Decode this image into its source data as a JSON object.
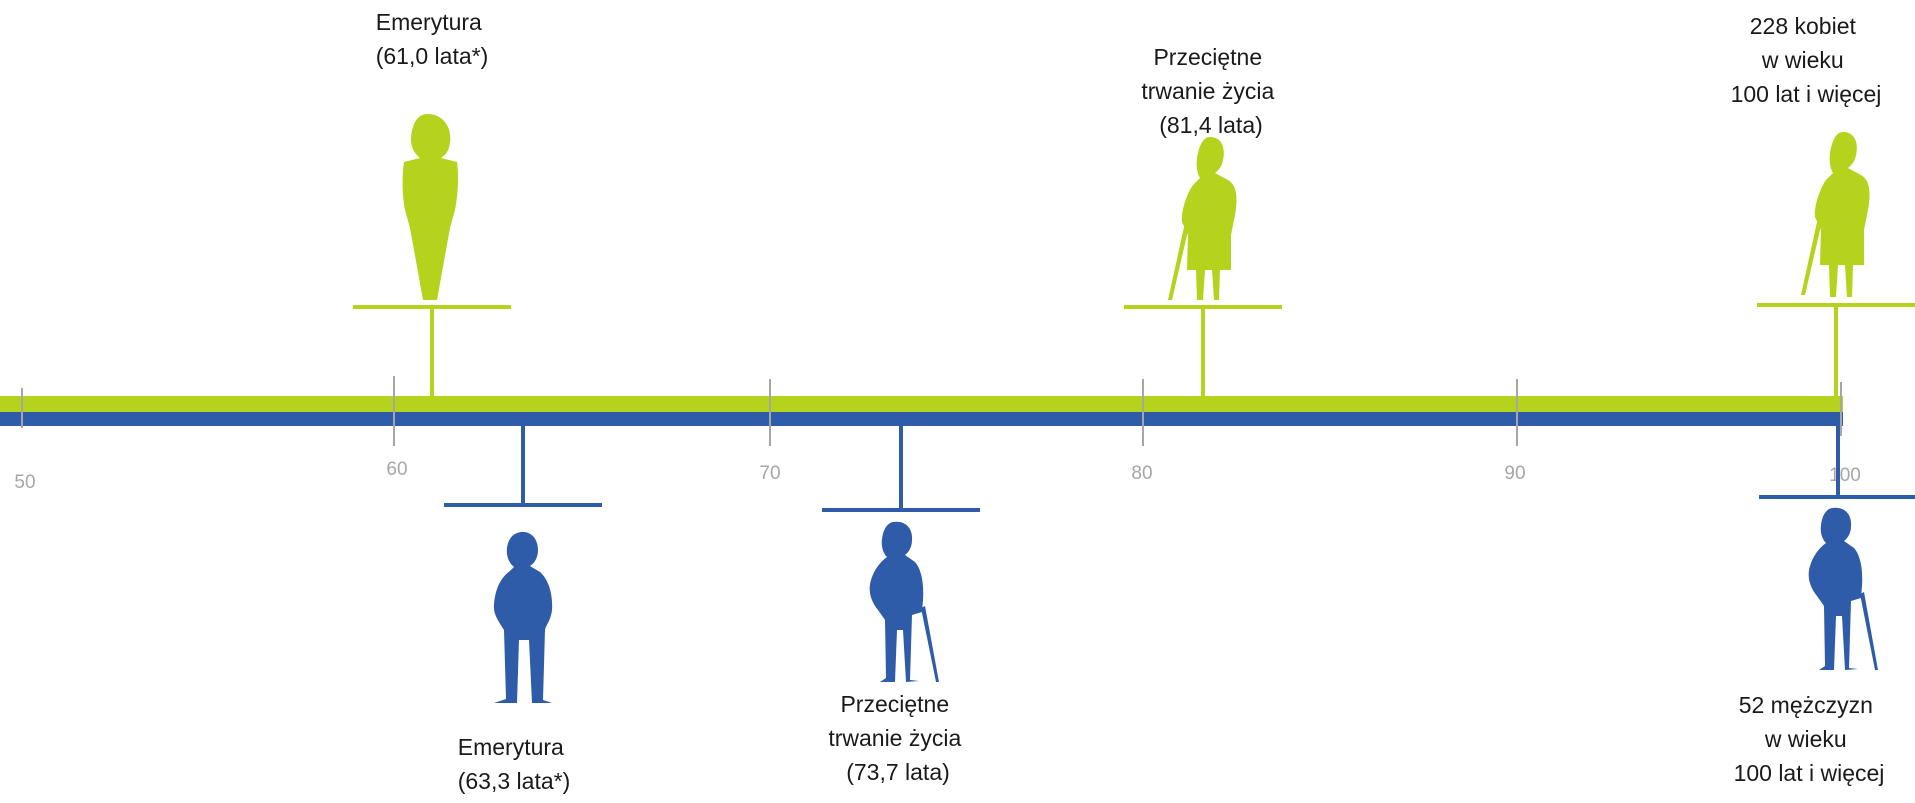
{
  "colors": {
    "women": "#b5d21c",
    "men": "#2e5ca8",
    "ticks": "#a6a6a6",
    "text": "#1a1a1a"
  },
  "axis": {
    "ticks": [
      "50",
      "60",
      "70",
      "80",
      "90",
      "100"
    ]
  },
  "women": {
    "retirement": {
      "lines": [
        "Emerytura",
        "(61,0 lata*)"
      ],
      "age": 61.0,
      "icon": "standing-woman-icon"
    },
    "life_expectancy": {
      "lines": [
        "Przeciętne",
        "trwanie życia",
        "(81,4 lata)"
      ],
      "age": 81.4,
      "icon": "elderly-woman-with-cane-icon"
    },
    "centenarians": {
      "lines": [
        "228 kobiet",
        "w wieku",
        "100 lat i więcej"
      ],
      "age": 100,
      "icon": "elderly-woman-with-cane-icon"
    }
  },
  "men": {
    "retirement": {
      "lines": [
        "Emerytura",
        "(63,3 lata*)"
      ],
      "age": 63.3,
      "icon": "standing-man-icon"
    },
    "life_expectancy": {
      "lines": [
        "Przeciętne",
        "trwanie życia",
        "(73,7 lata)"
      ],
      "age": 73.7,
      "icon": "elderly-man-with-cane-icon"
    },
    "centenarians": {
      "lines": [
        "52 mężczyzn",
        "w wieku",
        "100 lat i więcej"
      ],
      "age": 100,
      "icon": "elderly-man-with-cane-icon"
    }
  }
}
